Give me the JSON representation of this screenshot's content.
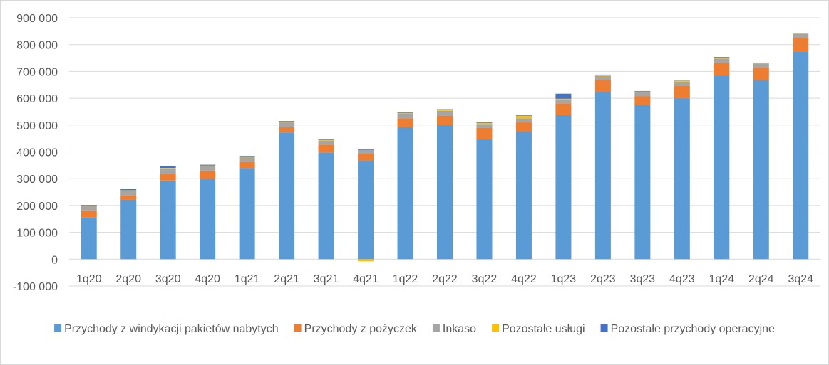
{
  "chart_data": {
    "type": "bar",
    "stacked": true,
    "categories": [
      "1q20",
      "2q20",
      "3q20",
      "4q20",
      "1q21",
      "2q21",
      "3q21",
      "4q21",
      "1q22",
      "2q22",
      "3q22",
      "4q22",
      "1q23",
      "2q23",
      "3q23",
      "4q23",
      "1q24",
      "2q24",
      "3q24"
    ],
    "series": [
      {
        "name": "Przychody z windykacji pakietów nabytych",
        "color": "#5b9bd5",
        "values": [
          155000,
          222000,
          293000,
          300000,
          340000,
          472000,
          397000,
          368000,
          492000,
          500000,
          447000,
          475000,
          537000,
          623000,
          575000,
          600000,
          685000,
          667000,
          775000
        ]
      },
      {
        "name": "Przychody z pożyczek",
        "color": "#ed7d31",
        "values": [
          27000,
          15000,
          25000,
          30000,
          22000,
          20000,
          30000,
          25000,
          33000,
          35000,
          42000,
          35000,
          44000,
          45000,
          33000,
          47000,
          48000,
          47000,
          50000
        ]
      },
      {
        "name": "Inkaso",
        "color": "#a5a5a5",
        "values": [
          16000,
          18000,
          20000,
          17000,
          18000,
          18000,
          15000,
          15000,
          18000,
          18000,
          15000,
          15000,
          15000,
          15000,
          15000,
          15000,
          15000,
          15000,
          15000
        ]
      },
      {
        "name": "Pozostałe usługi",
        "color": "#ffc000",
        "values": [
          2000,
          2000,
          2000,
          2000,
          3000,
          3000,
          3000,
          -8000,
          2000,
          4000,
          4000,
          10000,
          2000,
          3000,
          2000,
          4000,
          4000,
          2000,
          2000
        ]
      },
      {
        "name": "Pozostałe przychody operacyjne",
        "color": "#4472c4",
        "values": [
          2000,
          6000,
          6000,
          3000,
          2000,
          2000,
          2000,
          2000,
          2000,
          2000,
          2000,
          2000,
          19000,
          2000,
          2000,
          2000,
          2000,
          2000,
          2000
        ]
      }
    ],
    "y_ticks": [
      "900 000",
      "800 000",
      "700 000",
      "600 000",
      "500 000",
      "400 000",
      "300 000",
      "200 000",
      "100 000",
      "0",
      "-100 000"
    ],
    "ylim": [
      -100000,
      900000
    ],
    "legend_placement": "bottom",
    "grid": true,
    "gridline_color": "#d9d9d9",
    "title": "",
    "xlabel": "",
    "ylabel": ""
  }
}
